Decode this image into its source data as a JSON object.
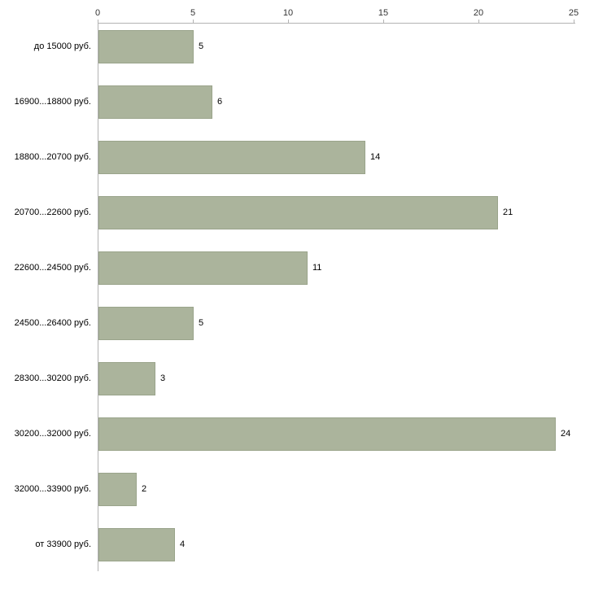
{
  "chart_data": {
    "type": "bar",
    "orientation": "horizontal",
    "title": "",
    "xlabel": "",
    "ylabel": "",
    "categories": [
      "до 15000 руб.",
      "16900...18800 руб.",
      "18800...20700 руб.",
      "20700...22600 руб.",
      "22600...24500 руб.",
      "24500...26400 руб.",
      "28300...30200 руб.",
      "30200...32000 руб.",
      "32000...33900 руб.",
      "от 33900 руб."
    ],
    "values": [
      5,
      6,
      14,
      21,
      11,
      5,
      3,
      24,
      2,
      4
    ],
    "xlim": [
      0,
      25
    ],
    "x_ticks": [
      0,
      5,
      10,
      15,
      20,
      25
    ],
    "axis_position": "top",
    "grid": false,
    "legend": "none",
    "bar_color": "#abb49c",
    "bar_border_color": "#9aa48b",
    "axis_color": "#b3b3b3",
    "value_labels": "outside-right"
  }
}
